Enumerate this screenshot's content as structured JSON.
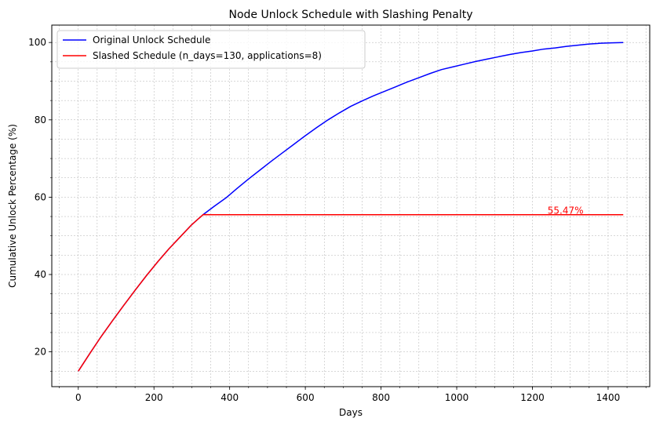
{
  "chart_data": {
    "type": "line",
    "title": "Node Unlock Schedule with Slashing Penalty",
    "xlabel": "Days",
    "ylabel": "Cumulative Unlock Percentage (%)",
    "xlim": [
      -70,
      1510
    ],
    "ylim": [
      11,
      104.5
    ],
    "xticks": [
      0,
      200,
      400,
      600,
      800,
      1000,
      1200,
      1400
    ],
    "yticks": [
      20,
      40,
      60,
      80,
      100
    ],
    "grid": true,
    "legend_position": "top-left",
    "series": [
      {
        "name": "Original Unlock Schedule",
        "color": "#0000ff",
        "x": [
          0,
          30,
          60,
          90,
          120,
          150,
          180,
          210,
          240,
          270,
          300,
          330,
          360,
          390,
          420,
          450,
          480,
          510,
          540,
          570,
          600,
          630,
          660,
          690,
          720,
          750,
          780,
          810,
          840,
          870,
          900,
          930,
          960,
          990,
          1020,
          1050,
          1080,
          1110,
          1140,
          1170,
          1200,
          1230,
          1260,
          1290,
          1320,
          1350,
          1380,
          1410,
          1440
        ],
        "y": [
          15,
          19.5,
          23.9,
          28.0,
          32.0,
          35.9,
          39.7,
          43.3,
          46.7,
          49.8,
          52.9,
          55.5,
          57.7,
          59.8,
          62.3,
          64.7,
          67.0,
          69.3,
          71.5,
          73.7,
          75.9,
          78.0,
          80.0,
          81.8,
          83.5,
          84.9,
          86.2,
          87.4,
          88.6,
          89.8,
          90.9,
          92.0,
          93.0,
          93.7,
          94.4,
          95.1,
          95.7,
          96.3,
          96.9,
          97.4,
          97.8,
          98.3,
          98.6,
          99.0,
          99.3,
          99.6,
          99.8,
          99.9,
          100.0
        ]
      },
      {
        "name": "Slashed Schedule (n_days=130, applications=8)",
        "color": "#ff0000",
        "x": [
          0,
          30,
          60,
          90,
          120,
          150,
          180,
          210,
          240,
          270,
          300,
          330,
          360,
          390,
          400,
          1440
        ],
        "y": [
          15,
          19.5,
          23.9,
          28.0,
          32.0,
          35.9,
          39.7,
          43.3,
          46.7,
          49.8,
          52.9,
          55.5,
          55.47,
          55.47,
          55.47,
          55.47
        ]
      }
    ],
    "annotations": [
      {
        "text": "55.47%",
        "x": 1240,
        "y": 55.47,
        "color": "#ff0000"
      }
    ]
  }
}
